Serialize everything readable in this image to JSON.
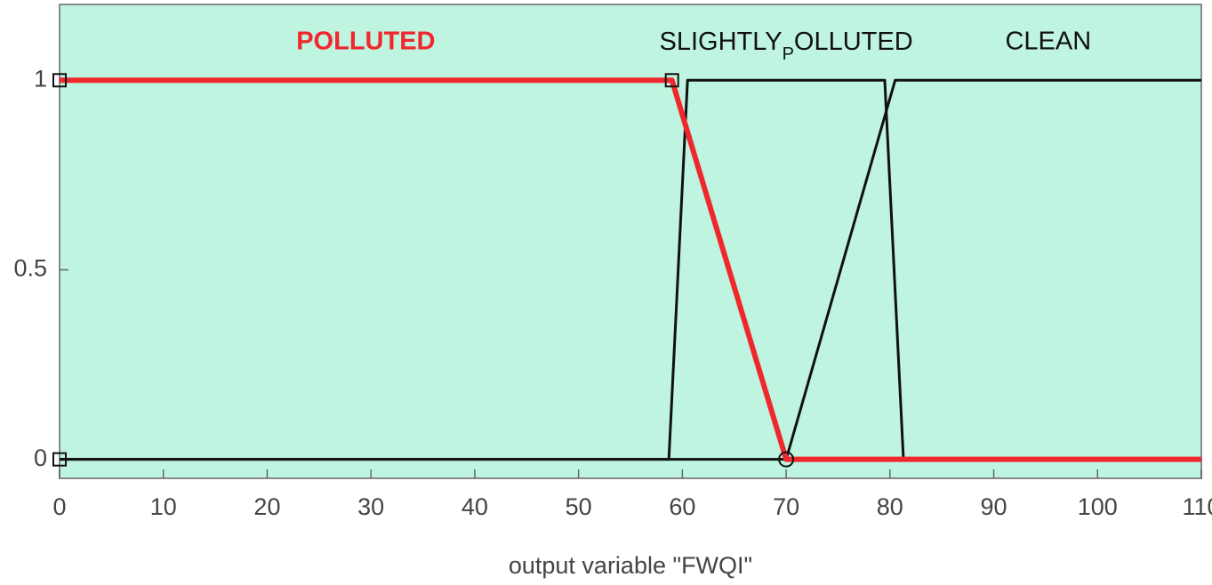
{
  "chart_data": {
    "type": "line",
    "x_label": "output variable \"FWQI\"",
    "xlim": [
      0,
      110
    ],
    "ylim": [
      -0.05,
      1.2
    ],
    "xticks": [
      0,
      10,
      20,
      30,
      40,
      50,
      60,
      70,
      80,
      90,
      100,
      110
    ],
    "yticks": [
      0,
      0.5,
      1
    ],
    "background": "#bff5e0",
    "series": [
      {
        "name": "POLLUTED",
        "color": "#f0282d",
        "x": [
          0,
          59,
          70,
          110
        ],
        "values": [
          1,
          1,
          0,
          0
        ]
      },
      {
        "name": "SLIGHTLY_POLLUTED",
        "color": "#111111",
        "x": [
          0,
          58.7,
          60.5,
          79.5,
          81.3,
          110
        ],
        "values": [
          0,
          0,
          1,
          1,
          0,
          0
        ]
      },
      {
        "name": "CLEAN",
        "color": "#111111",
        "x": [
          0,
          70,
          80.5,
          110
        ],
        "values": [
          0,
          0,
          1,
          1
        ]
      }
    ]
  }
}
